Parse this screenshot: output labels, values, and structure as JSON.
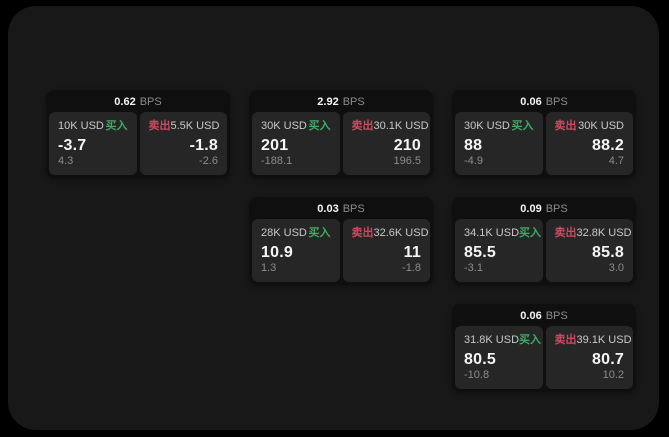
{
  "labels": {
    "bps_unit": "BPS",
    "buy": "买入",
    "sell": "卖出"
  },
  "colors": {
    "page_outside": "#000000",
    "panel_bg": "#181818",
    "card_bg": "#0f0f0f",
    "cell_bg": "#262626",
    "text_primary": "#f5f5f5",
    "text_secondary": "#8c8c8c",
    "text_size_label": "#c9c9c9",
    "buy_green": "#42a864",
    "sell_red": "#cc4a60"
  },
  "cards": [
    {
      "bps": "0.62",
      "grid": {
        "row": 1,
        "col": 1
      },
      "buy": {
        "size": "10K USD",
        "price": "-3.7",
        "sub": "4.3"
      },
      "sell": {
        "size": "5.5K USD",
        "price": "-1.8",
        "sub": "-2.6"
      }
    },
    {
      "bps": "2.92",
      "grid": {
        "row": 1,
        "col": 2
      },
      "buy": {
        "size": "30K USD",
        "price": "201",
        "sub": "-188.1"
      },
      "sell": {
        "size": "30.1K USD",
        "price": "210",
        "sub": "196.5"
      }
    },
    {
      "bps": "0.06",
      "grid": {
        "row": 1,
        "col": 3
      },
      "buy": {
        "size": "30K USD",
        "price": "88",
        "sub": "-4.9"
      },
      "sell": {
        "size": "30K USD",
        "price": "88.2",
        "sub": "4.7"
      }
    },
    {
      "bps": "0.03",
      "grid": {
        "row": 2,
        "col": 2
      },
      "buy": {
        "size": "28K USD",
        "price": "10.9",
        "sub": "1.3"
      },
      "sell": {
        "size": "32.6K USD",
        "price": "11",
        "sub": "-1.8"
      }
    },
    {
      "bps": "0.09",
      "grid": {
        "row": 2,
        "col": 3
      },
      "buy": {
        "size": "34.1K USD",
        "price": "85.5",
        "sub": "-3.1"
      },
      "sell": {
        "size": "32.8K USD",
        "price": "85.8",
        "sub": "3.0"
      }
    },
    {
      "bps": "0.06",
      "grid": {
        "row": 3,
        "col": 3
      },
      "buy": {
        "size": "31.8K USD",
        "price": "80.5",
        "sub": "-10.8"
      },
      "sell": {
        "size": "39.1K USD",
        "price": "80.7",
        "sub": "10.2"
      }
    }
  ]
}
